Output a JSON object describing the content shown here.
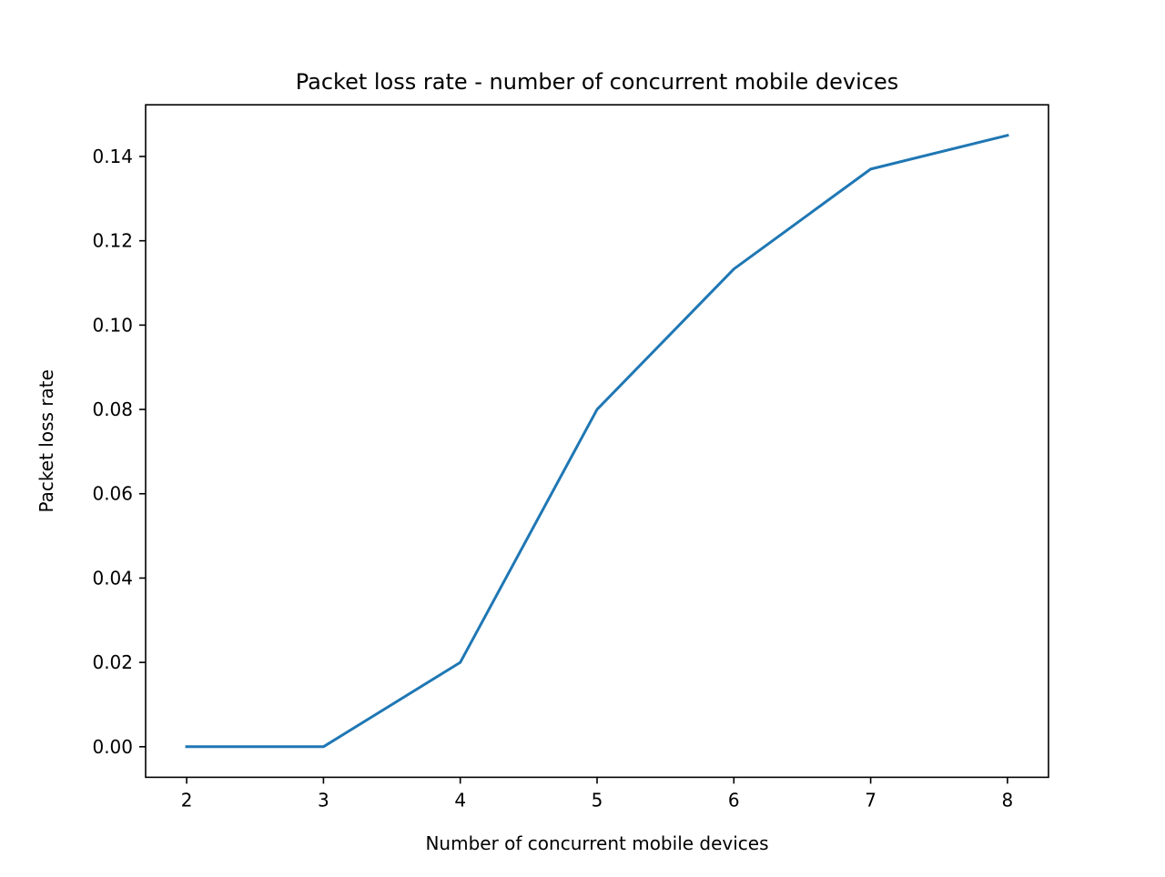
{
  "chart_data": {
    "type": "line",
    "title": "Packet loss rate - number of concurrent mobile devices",
    "xlabel": "Number of concurrent mobile devices",
    "ylabel": "Packet loss rate",
    "x": [
      2,
      3,
      4,
      5,
      6,
      7,
      8
    ],
    "series": [
      {
        "values": [
          0.0,
          0.0,
          0.02,
          0.08,
          0.1133,
          0.137,
          0.145
        ],
        "color": "#1f77b4"
      }
    ],
    "xlim": [
      1.7,
      8.3
    ],
    "ylim": [
      -0.00725,
      0.15225
    ],
    "xticks": [
      2,
      3,
      4,
      5,
      6,
      7,
      8
    ],
    "xtick_labels": [
      "2",
      "3",
      "4",
      "5",
      "6",
      "7",
      "8"
    ],
    "yticks": [
      0.0,
      0.02,
      0.04,
      0.06,
      0.08,
      0.1,
      0.12,
      0.14
    ],
    "ytick_labels": [
      "0.00",
      "0.02",
      "0.04",
      "0.06",
      "0.08",
      "0.10",
      "0.12",
      "0.14"
    ],
    "grid": false,
    "legend": false
  }
}
